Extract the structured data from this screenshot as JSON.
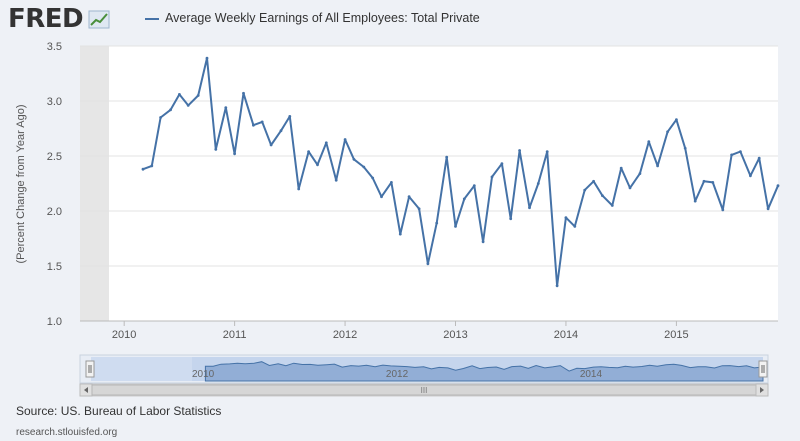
{
  "header": {
    "logo_text": "FRED",
    "logo_icon": "line-chart-icon",
    "legend_label": "Average Weekly Earnings of All Employees: Total Private",
    "series_color": "#4572a7"
  },
  "footer": {
    "source": "Source: US. Bureau of Labor Statistics",
    "site": "research.stlouisfed.org"
  },
  "navigator": {
    "tick_labels": [
      "2010",
      "2012",
      "2014"
    ],
    "scrollbar_grip": "III"
  },
  "chart_data": {
    "type": "line",
    "title": "Average Weekly Earnings of All Employees: Total Private",
    "xlabel": "",
    "ylabel": "(Percent Change from Year Ago)",
    "xlim": [
      2009.6,
      2015.92
    ],
    "ylim": [
      1.0,
      3.5
    ],
    "yticks": [
      1.0,
      1.5,
      2.0,
      2.5,
      3.0,
      3.5
    ],
    "ytick_labels": [
      "1.0",
      "1.5",
      "2.0",
      "2.5",
      "3.0",
      "3.5"
    ],
    "xticks": [
      2010,
      2011,
      2012,
      2013,
      2014,
      2015
    ],
    "xtick_labels": [
      "2010",
      "2011",
      "2012",
      "2013",
      "2014",
      "2015"
    ],
    "grid": true,
    "series": [
      {
        "name": "Average Weekly Earnings of All Employees: Total Private",
        "x": [
          2010.17,
          2010.25,
          2010.33,
          2010.42,
          2010.5,
          2010.58,
          2010.67,
          2010.75,
          2010.83,
          2010.92,
          2011.0,
          2011.08,
          2011.17,
          2011.25,
          2011.33,
          2011.42,
          2011.5,
          2011.58,
          2011.67,
          2011.75,
          2011.83,
          2011.92,
          2012.0,
          2012.08,
          2012.17,
          2012.25,
          2012.33,
          2012.42,
          2012.5,
          2012.58,
          2012.67,
          2012.75,
          2012.83,
          2012.92,
          2013.0,
          2013.08,
          2013.17,
          2013.25,
          2013.33,
          2013.42,
          2013.5,
          2013.58,
          2013.67,
          2013.75,
          2013.83,
          2013.92,
          2014.0,
          2014.08,
          2014.17,
          2014.25,
          2014.33,
          2014.42,
          2014.5,
          2014.58,
          2014.67,
          2014.75,
          2014.83,
          2014.92,
          2015.0,
          2015.08,
          2015.17,
          2015.25,
          2015.33,
          2015.42,
          2015.5,
          2015.58,
          2015.67,
          2015.75,
          2015.83,
          2015.92
        ],
        "values": [
          2.38,
          2.41,
          2.85,
          2.92,
          3.06,
          2.96,
          3.05,
          3.39,
          2.56,
          2.94,
          2.52,
          3.07,
          2.78,
          2.81,
          2.6,
          2.73,
          2.86,
          2.2,
          2.54,
          2.42,
          2.62,
          2.28,
          2.65,
          2.47,
          2.4,
          2.3,
          2.13,
          2.26,
          1.79,
          2.13,
          2.02,
          1.52,
          1.89,
          2.49,
          1.86,
          2.11,
          2.23,
          1.72,
          2.31,
          2.43,
          1.93,
          2.55,
          2.03,
          2.25,
          2.54,
          1.32,
          1.94,
          1.86,
          2.19,
          2.27,
          2.14,
          2.05,
          2.39,
          2.21,
          2.34,
          2.63,
          2.41,
          2.72,
          2.83,
          2.57,
          2.09,
          2.27,
          2.26,
          2.01,
          2.51,
          2.54,
          2.32,
          2.48,
          2.02,
          2.23
        ]
      }
    ]
  }
}
